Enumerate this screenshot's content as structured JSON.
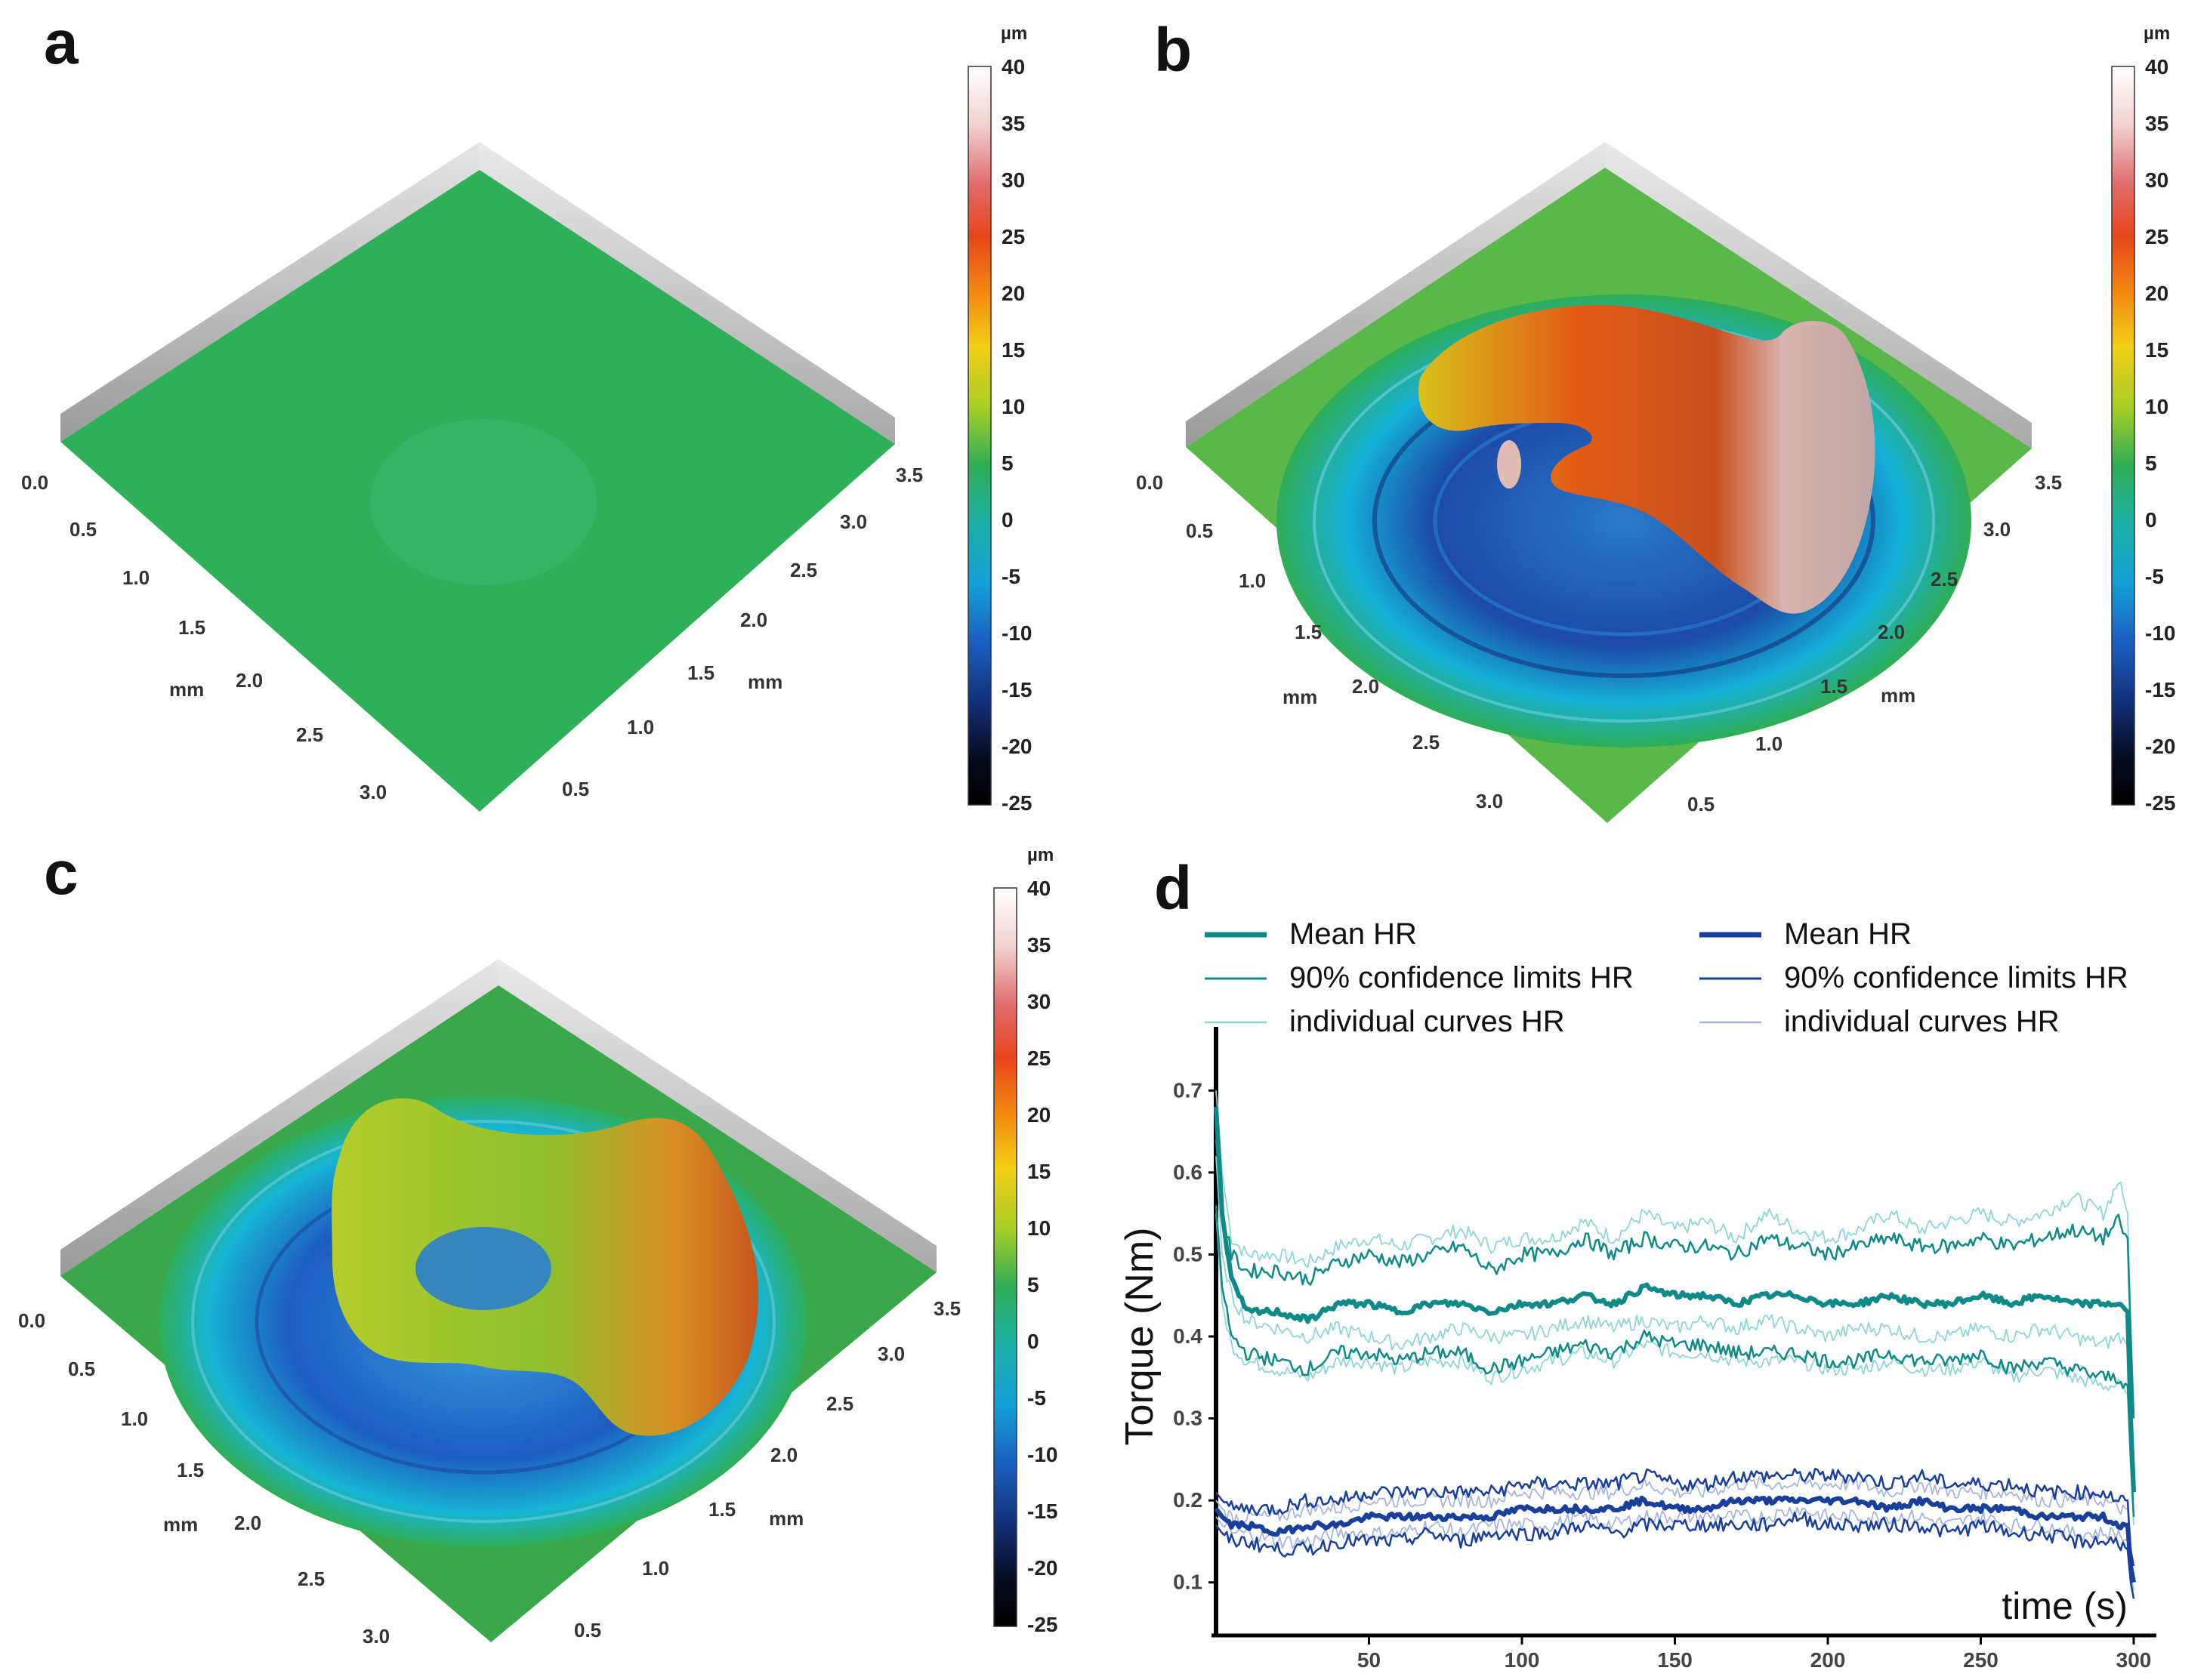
{
  "panels": {
    "a": {
      "letter": "a",
      "unit": "µm",
      "axis_unit": "mm",
      "x_ticks": [
        "0.0",
        "0.5",
        "1.0",
        "1.5",
        "2.0",
        "2.5",
        "3.0"
      ],
      "y_ticks": [
        "3.5",
        "3.0",
        "2.5",
        "2.0",
        "1.5",
        "1.0",
        "0.5"
      ],
      "colorbar_ticks": [
        "40",
        "35",
        "30",
        "25",
        "20",
        "15",
        "10",
        "5",
        "0",
        "-5",
        "-10",
        "-15",
        "-20",
        "-25"
      ]
    },
    "b": {
      "letter": "b",
      "unit": "µm",
      "axis_unit": "mm",
      "x_ticks": [
        "0.0",
        "0.5",
        "1.0",
        "1.5",
        "2.0",
        "2.5",
        "3.0"
      ],
      "y_ticks": [
        "3.5",
        "3.0",
        "2.5",
        "2.0",
        "1.5",
        "1.0",
        "0.5"
      ],
      "colorbar_ticks": [
        "40",
        "35",
        "30",
        "25",
        "20",
        "15",
        "10",
        "5",
        "0",
        "-5",
        "-10",
        "-15",
        "-20",
        "-25"
      ]
    },
    "c": {
      "letter": "c",
      "unit": "µm",
      "axis_unit": "mm",
      "x_ticks": [
        "0.0",
        "0.5",
        "1.0",
        "1.5",
        "2.0",
        "2.5",
        "3.0"
      ],
      "y_ticks": [
        "3.5",
        "3.0",
        "2.5",
        "2.0",
        "1.5",
        "1.0",
        "0.5"
      ],
      "colorbar_ticks": [
        "40",
        "35",
        "30",
        "25",
        "20",
        "15",
        "10",
        "5",
        "0",
        "-5",
        "-10",
        "-15",
        "-20",
        "-25"
      ]
    },
    "d": {
      "letter": "d"
    }
  },
  "colors": {
    "teal": "#0f8a86",
    "teal_light": "#8fd6d3",
    "blue": "#1a3f9a",
    "blue_light": "#a9b4dc",
    "surface_green": "#2fae56"
  },
  "chart_data": {
    "type": "line",
    "title": "",
    "xlabel": "time (s)",
    "ylabel": "Torque (Nm)",
    "xlim": [
      0,
      300
    ],
    "ylim": [
      0.05,
      0.75
    ],
    "x_ticks": [
      "50",
      "100",
      "150",
      "200",
      "250",
      "300"
    ],
    "y_ticks": [
      "0.7",
      "0.6",
      "0.5",
      "0.4",
      "0.3",
      "0.2",
      "0.1"
    ],
    "legend": [
      {
        "label": "Mean HR",
        "group": "teal",
        "kind": "mean"
      },
      {
        "label": "90% confidence limits HR",
        "group": "teal",
        "kind": "ci"
      },
      {
        "label": "individual curves HR",
        "group": "teal",
        "kind": "indiv"
      },
      {
        "label": "Mean HR",
        "group": "blue",
        "kind": "mean"
      },
      {
        "label": "90% confidence limits HR",
        "group": "blue",
        "kind": "ci"
      },
      {
        "label": "individual curves HR",
        "group": "blue",
        "kind": "indiv"
      }
    ],
    "x": [
      0,
      2,
      5,
      10,
      20,
      30,
      40,
      50,
      60,
      70,
      80,
      90,
      100,
      110,
      120,
      130,
      140,
      150,
      160,
      170,
      180,
      190,
      200,
      210,
      220,
      230,
      240,
      250,
      260,
      270,
      280,
      290,
      295,
      298,
      299,
      300
    ],
    "series": [
      {
        "name": "Mean HR (teal)",
        "group": "teal",
        "kind": "mean",
        "values": [
          0.68,
          0.55,
          0.47,
          0.43,
          0.43,
          0.42,
          0.44,
          0.44,
          0.43,
          0.44,
          0.44,
          0.43,
          0.44,
          0.44,
          0.45,
          0.44,
          0.46,
          0.45,
          0.45,
          0.44,
          0.45,
          0.45,
          0.44,
          0.44,
          0.45,
          0.44,
          0.44,
          0.45,
          0.44,
          0.45,
          0.44,
          0.44,
          0.44,
          0.43,
          0.3,
          0.21
        ]
      },
      {
        "name": "90% confidence upper (teal)",
        "group": "teal",
        "kind": "ci",
        "values": [
          0.64,
          0.55,
          0.5,
          0.48,
          0.48,
          0.47,
          0.49,
          0.5,
          0.49,
          0.5,
          0.51,
          0.48,
          0.5,
          0.5,
          0.52,
          0.5,
          0.52,
          0.51,
          0.51,
          0.5,
          0.52,
          0.51,
          0.5,
          0.51,
          0.52,
          0.51,
          0.51,
          0.52,
          0.51,
          0.52,
          0.53,
          0.52,
          0.54,
          0.52,
          0.4,
          0.3
        ]
      },
      {
        "name": "90% confidence lower (teal)",
        "group": "teal",
        "kind": "ci",
        "values": [
          0.56,
          0.46,
          0.4,
          0.38,
          0.37,
          0.36,
          0.38,
          0.38,
          0.37,
          0.38,
          0.38,
          0.36,
          0.37,
          0.38,
          0.39,
          0.38,
          0.4,
          0.39,
          0.39,
          0.38,
          0.38,
          0.38,
          0.37,
          0.37,
          0.38,
          0.37,
          0.37,
          0.38,
          0.36,
          0.37,
          0.36,
          0.35,
          0.35,
          0.34,
          0.25,
          0.18
        ]
      },
      {
        "name": "individual curve 1 (teal)",
        "group": "teal",
        "kind": "indiv",
        "values": [
          0.7,
          0.6,
          0.52,
          0.5,
          0.5,
          0.49,
          0.51,
          0.52,
          0.51,
          0.52,
          0.53,
          0.51,
          0.52,
          0.52,
          0.54,
          0.52,
          0.55,
          0.53,
          0.54,
          0.52,
          0.55,
          0.53,
          0.52,
          0.53,
          0.55,
          0.53,
          0.54,
          0.55,
          0.54,
          0.55,
          0.57,
          0.55,
          0.59,
          0.55,
          0.42,
          0.31
        ]
      },
      {
        "name": "individual curve 2 (teal)",
        "group": "teal",
        "kind": "indiv",
        "values": [
          0.55,
          0.44,
          0.39,
          0.37,
          0.36,
          0.35,
          0.37,
          0.37,
          0.36,
          0.37,
          0.37,
          0.35,
          0.36,
          0.37,
          0.38,
          0.37,
          0.39,
          0.38,
          0.38,
          0.37,
          0.37,
          0.37,
          0.36,
          0.36,
          0.37,
          0.36,
          0.36,
          0.37,
          0.35,
          0.36,
          0.35,
          0.34,
          0.34,
          0.33,
          0.24,
          0.17
        ]
      },
      {
        "name": "individual curve 3 (teal)",
        "group": "teal",
        "kind": "indiv",
        "values": [
          0.62,
          0.5,
          0.45,
          0.42,
          0.41,
          0.4,
          0.41,
          0.4,
          0.39,
          0.4,
          0.41,
          0.4,
          0.4,
          0.41,
          0.42,
          0.41,
          0.42,
          0.41,
          0.42,
          0.41,
          0.42,
          0.41,
          0.4,
          0.41,
          0.41,
          0.4,
          0.4,
          0.41,
          0.4,
          0.41,
          0.4,
          0.39,
          0.4,
          0.39,
          0.28,
          0.2
        ]
      },
      {
        "name": "Mean HR (blue)",
        "group": "blue",
        "kind": "mean",
        "values": [
          0.19,
          0.18,
          0.17,
          0.17,
          0.16,
          0.17,
          0.17,
          0.18,
          0.18,
          0.18,
          0.18,
          0.18,
          0.19,
          0.19,
          0.19,
          0.19,
          0.2,
          0.19,
          0.19,
          0.2,
          0.2,
          0.2,
          0.2,
          0.2,
          0.19,
          0.2,
          0.19,
          0.19,
          0.19,
          0.18,
          0.18,
          0.18,
          0.17,
          0.17,
          0.12,
          0.1
        ]
      },
      {
        "name": "90% confidence upper (blue)",
        "group": "blue",
        "kind": "ci",
        "values": [
          0.21,
          0.2,
          0.19,
          0.19,
          0.19,
          0.2,
          0.2,
          0.21,
          0.21,
          0.21,
          0.21,
          0.21,
          0.22,
          0.22,
          0.22,
          0.22,
          0.23,
          0.22,
          0.22,
          0.23,
          0.23,
          0.23,
          0.23,
          0.23,
          0.22,
          0.23,
          0.22,
          0.22,
          0.22,
          0.21,
          0.21,
          0.21,
          0.2,
          0.2,
          0.14,
          0.12
        ]
      },
      {
        "name": "90% confidence lower (blue)",
        "group": "blue",
        "kind": "ci",
        "values": [
          0.17,
          0.16,
          0.15,
          0.15,
          0.14,
          0.14,
          0.15,
          0.15,
          0.15,
          0.16,
          0.15,
          0.16,
          0.16,
          0.16,
          0.17,
          0.16,
          0.17,
          0.17,
          0.17,
          0.17,
          0.17,
          0.18,
          0.17,
          0.17,
          0.17,
          0.17,
          0.16,
          0.17,
          0.16,
          0.16,
          0.15,
          0.15,
          0.15,
          0.14,
          0.1,
          0.08
        ]
      },
      {
        "name": "individual curve 1 (blue)",
        "group": "blue",
        "kind": "indiv",
        "values": [
          0.2,
          0.19,
          0.18,
          0.18,
          0.18,
          0.19,
          0.19,
          0.2,
          0.2,
          0.2,
          0.2,
          0.2,
          0.21,
          0.21,
          0.21,
          0.21,
          0.22,
          0.21,
          0.21,
          0.22,
          0.22,
          0.22,
          0.22,
          0.22,
          0.21,
          0.22,
          0.21,
          0.21,
          0.21,
          0.2,
          0.2,
          0.2,
          0.19,
          0.19,
          0.13,
          0.11
        ]
      },
      {
        "name": "individual curve 2 (blue)",
        "group": "blue",
        "kind": "indiv",
        "values": [
          0.18,
          0.17,
          0.16,
          0.16,
          0.15,
          0.15,
          0.16,
          0.16,
          0.16,
          0.17,
          0.16,
          0.17,
          0.17,
          0.17,
          0.18,
          0.17,
          0.18,
          0.18,
          0.18,
          0.18,
          0.18,
          0.19,
          0.18,
          0.18,
          0.18,
          0.18,
          0.17,
          0.18,
          0.17,
          0.17,
          0.16,
          0.16,
          0.16,
          0.15,
          0.11,
          0.09
        ]
      }
    ]
  }
}
